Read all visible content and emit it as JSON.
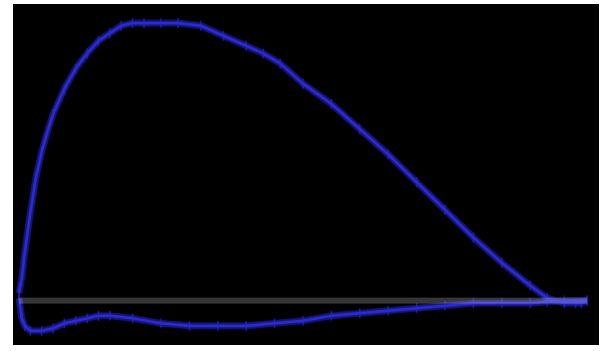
{
  "chart_data": {
    "type": "line",
    "title": "",
    "xlabel": "",
    "ylabel": "",
    "grid": false,
    "legend": "none",
    "background": "#000000",
    "xlim": [
      0,
      100
    ],
    "ylim": [
      -1.6,
      11.6
    ],
    "series": [
      {
        "color": "#2a2ad8",
        "x": [
          0,
          0.5,
          1,
          2,
          3,
          4,
          5,
          6,
          8,
          10,
          12,
          14,
          16,
          18,
          20,
          22,
          25,
          28,
          32,
          36,
          40,
          43,
          46,
          50,
          55,
          60,
          65,
          70,
          75,
          80,
          85,
          90,
          93,
          96,
          98,
          99,
          100
        ],
        "y": [
          0.3,
          0.9,
          1.9,
          3.5,
          4.9,
          5.9,
          6.7,
          7.4,
          8.4,
          9.2,
          9.8,
          10.3,
          10.6,
          10.9,
          11.0,
          11.0,
          11.0,
          11.0,
          10.9,
          10.5,
          10.1,
          9.8,
          9.4,
          8.6,
          7.8,
          6.8,
          5.8,
          4.7,
          3.6,
          2.5,
          1.5,
          0.6,
          0.1,
          -0.1,
          -0.1,
          -0.1,
          0.0
        ]
      },
      {
        "color": "#2a2ad8",
        "x": [
          0,
          0.5,
          1,
          2,
          4,
          6,
          8,
          10,
          12,
          14,
          16,
          20,
          25,
          30,
          35,
          40,
          45,
          50,
          55,
          60,
          65,
          70,
          75,
          80,
          85,
          90,
          93,
          96,
          100
        ],
        "y": [
          0.1,
          -0.7,
          -1.0,
          -1.2,
          -1.2,
          -1.1,
          -0.9,
          -0.8,
          -0.7,
          -0.6,
          -0.6,
          -0.7,
          -0.9,
          -1.0,
          -1.0,
          -1.0,
          -0.9,
          -0.8,
          -0.6,
          -0.5,
          -0.4,
          -0.3,
          -0.2,
          -0.1,
          -0.1,
          -0.1,
          -0.05,
          0.0,
          0.0
        ]
      },
      {
        "color": "#d9d9d9",
        "x": [
          0,
          100
        ],
        "y": [
          0,
          0
        ]
      }
    ]
  }
}
